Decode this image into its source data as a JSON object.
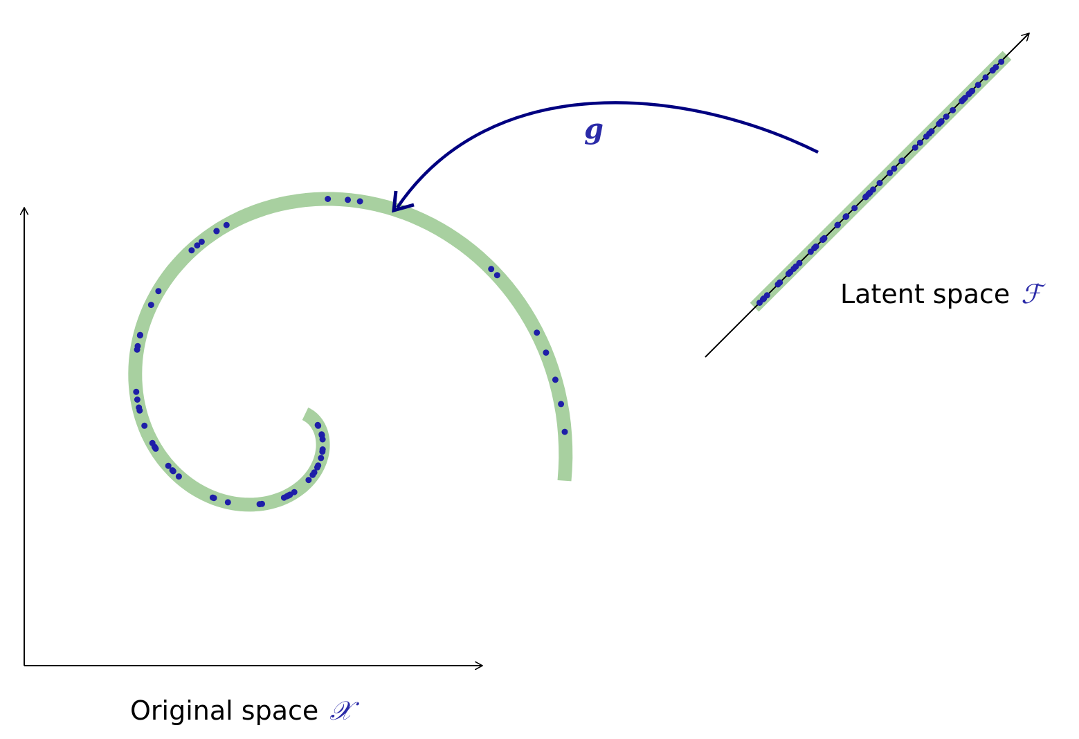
{
  "original_space": {
    "label": "Original space",
    "symbol": "𝒳"
  },
  "latent_space": {
    "label": "Latent space",
    "symbol": "ℱ"
  },
  "mapping": {
    "label": "g"
  },
  "colors": {
    "manifold": "#a8d0a0",
    "points": "#1e1ea8",
    "mapping_arrow": "#000080",
    "symbol_text": "#2a2aa8",
    "axes": "#000000"
  }
}
